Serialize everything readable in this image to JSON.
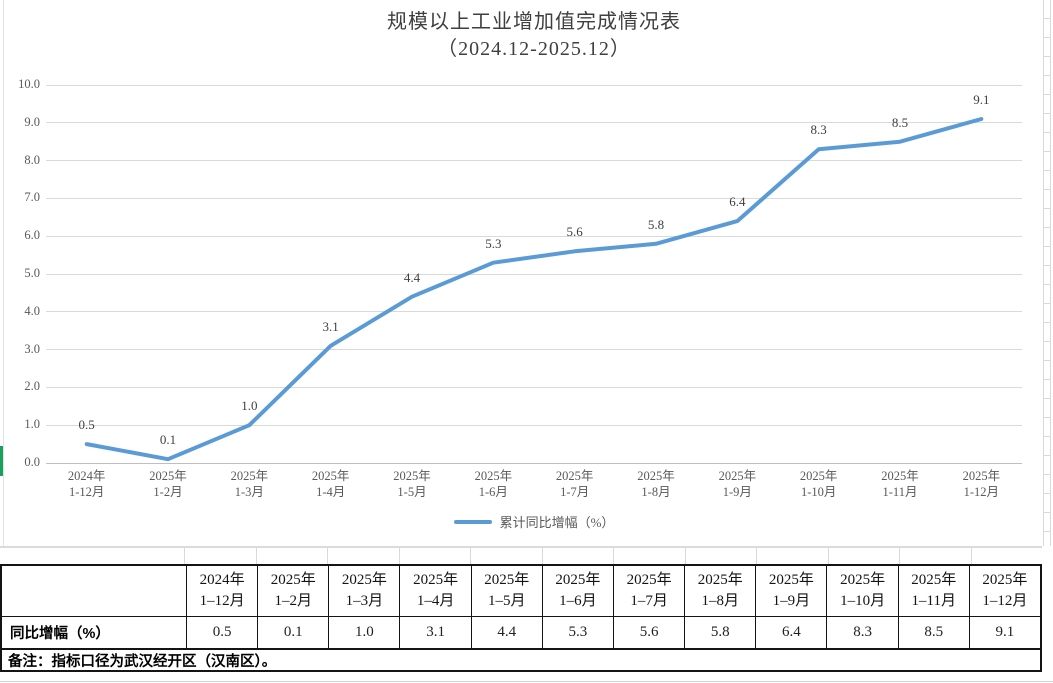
{
  "chart": {
    "title_line1": "规模以上工业增加值完成情况表",
    "title_line2": "（2024.12-2025.12）",
    "legend_label": "累计同比增幅（%）",
    "colors": {
      "line": "#5B9BD5",
      "gridline": "#D9D9D9",
      "axis_line": "#BFBFBF",
      "axis_text": "#595959",
      "label_text": "#404040"
    }
  },
  "chart_data": {
    "type": "line",
    "title": "规模以上工业增加值完成情况表（2024.12-2025.12）",
    "series": [
      {
        "name": "累计同比增幅（%）",
        "values": [
          0.5,
          0.1,
          1.0,
          3.1,
          4.4,
          5.3,
          5.6,
          5.8,
          6.4,
          8.3,
          8.5,
          9.1
        ]
      }
    ],
    "categories": [
      [
        "2024年",
        "1-12月"
      ],
      [
        "2025年",
        "1-2月"
      ],
      [
        "2025年",
        "1-3月"
      ],
      [
        "2025年",
        "1-4月"
      ],
      [
        "2025年",
        "1-5月"
      ],
      [
        "2025年",
        "1-6月"
      ],
      [
        "2025年",
        "1-7月"
      ],
      [
        "2025年",
        "1-8月"
      ],
      [
        "2025年",
        "1-9月"
      ],
      [
        "2025年",
        "1-10月"
      ],
      [
        "2025年",
        "1-11月"
      ],
      [
        "2025年",
        "1-12月"
      ]
    ],
    "point_labels": [
      "0.5",
      "0.1",
      "1.0",
      "3.1",
      "4.4",
      "5.3",
      "5.6",
      "5.8",
      "6.4",
      "8.3",
      "8.5",
      "9.1"
    ],
    "y_ticks": [
      "0.0",
      "1.0",
      "2.0",
      "3.0",
      "4.0",
      "5.0",
      "6.0",
      "7.0",
      "8.0",
      "9.0",
      "10.0"
    ],
    "ylim": [
      0,
      10
    ],
    "grid": true,
    "legend_position": "bottom"
  },
  "table": {
    "row_label": "同比增幅（%）",
    "columns": [
      [
        "2024年",
        "1–12月"
      ],
      [
        "2025年",
        "1–2月"
      ],
      [
        "2025年",
        "1–3月"
      ],
      [
        "2025年",
        "1–4月"
      ],
      [
        "2025年",
        "1–5月"
      ],
      [
        "2025年",
        "1–6月"
      ],
      [
        "2025年",
        "1–7月"
      ],
      [
        "2025年",
        "1–8月"
      ],
      [
        "2025年",
        "1–9月"
      ],
      [
        "2025年",
        "1–10月"
      ],
      [
        "2025年",
        "1–11月"
      ],
      [
        "2025年",
        "1–12月"
      ]
    ],
    "values": [
      "0.5",
      "0.1",
      "1.0",
      "3.1",
      "4.4",
      "5.3",
      "5.6",
      "5.8",
      "6.4",
      "8.3",
      "8.5",
      "9.1"
    ]
  },
  "note": {
    "text": "备注：指标口径为武汉经开区（汉南区）。"
  }
}
